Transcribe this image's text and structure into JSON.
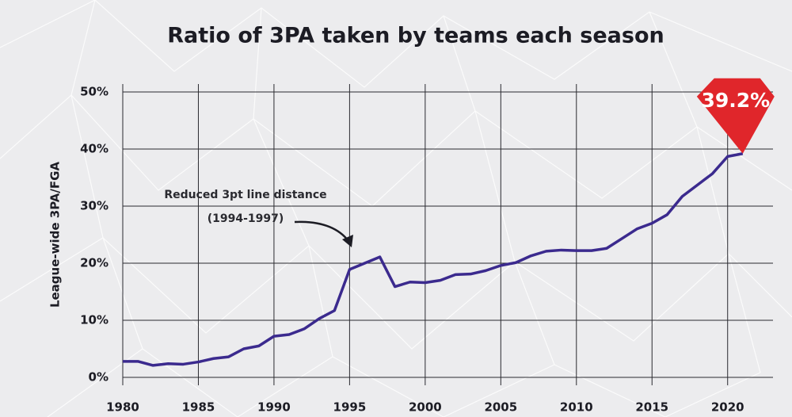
{
  "chart_data": {
    "type": "line",
    "title": "Ratio of 3PA taken by teams each season",
    "y_label": "League-wide 3PA/FGA",
    "annotation": {
      "lines": [
        "Reduced 3pt line distance",
        "(1994-1997)"
      ]
    },
    "x": [
      1980,
      1981,
      1982,
      1983,
      1984,
      1985,
      1986,
      1987,
      1988,
      1989,
      1990,
      1991,
      1992,
      1993,
      1994,
      1995,
      1996,
      1997,
      1998,
      1999,
      2000,
      2001,
      2002,
      2003,
      2004,
      2005,
      2006,
      2007,
      2008,
      2009,
      2010,
      2011,
      2012,
      2013,
      2014,
      2015,
      2016,
      2017,
      2018,
      2019,
      2020,
      2021
    ],
    "series": [
      {
        "color": "#3b2a8e",
        "values": [
          2.8,
          2.8,
          2.1,
          2.4,
          2.3,
          2.7,
          3.3,
          3.6,
          5.0,
          5.5,
          7.2,
          7.5,
          8.5,
          10.3,
          11.7,
          18.9,
          20.0,
          21.1,
          15.9,
          16.7,
          16.6,
          17.0,
          18.0,
          18.1,
          18.7,
          19.6,
          20.1,
          21.3,
          22.1,
          22.3,
          22.2,
          22.2,
          22.6,
          24.3,
          26.0,
          27.0,
          28.5,
          31.7,
          33.7,
          35.7,
          38.7,
          39.2
        ],
        "value_labels": [
          null,
          null,
          null,
          null,
          null,
          null,
          null,
          null,
          null,
          null,
          null,
          null,
          null,
          null,
          null,
          null,
          null,
          null,
          null,
          null,
          null,
          null,
          null,
          null,
          null,
          null,
          null,
          null,
          null,
          null,
          null,
          null,
          null,
          null,
          null,
          null,
          null,
          null,
          null,
          null,
          null,
          "39.2%"
        ]
      }
    ],
    "xlim": [
      1980,
      2023
    ],
    "xticks": [
      1980,
      1985,
      1990,
      1995,
      2000,
      2005,
      2010,
      2015,
      2020
    ],
    "ylim": [
      0,
      50
    ],
    "yticks": [
      {
        "value": 0,
        "label": "0%"
      },
      {
        "value": 10,
        "label": "10%"
      },
      {
        "value": 20,
        "label": "20%"
      },
      {
        "value": 30,
        "label": "30%"
      },
      {
        "value": 40,
        "label": "40%"
      },
      {
        "value": 50,
        "label": "50%"
      }
    ],
    "grid": true,
    "callout_color": "#e0262b"
  }
}
